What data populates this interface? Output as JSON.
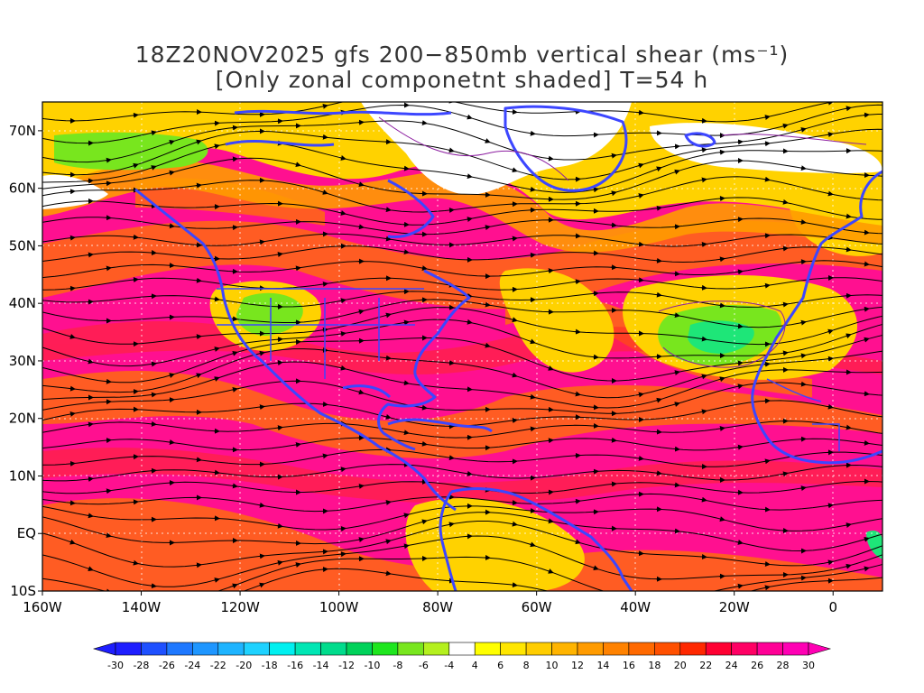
{
  "title": {
    "line1": "18Z20NOV2025 gfs 200−850mb vertical shear (ms⁻¹)",
    "line2": "[Only zonal componetnt shaded] T=54 h"
  },
  "axes": {
    "lat_labels": [
      "70N",
      "60N",
      "50N",
      "40N",
      "30N",
      "20N",
      "10N",
      "EQ",
      "10S"
    ],
    "lat_values": [
      70,
      60,
      50,
      40,
      30,
      20,
      10,
      0,
      -10
    ],
    "lon_labels": [
      "160W",
      "140W",
      "120W",
      "100W",
      "80W",
      "60W",
      "40W",
      "20W",
      "0"
    ],
    "lon_values": [
      -160,
      -140,
      -120,
      -100,
      -80,
      -60,
      -40,
      -20,
      0
    ],
    "lon_range": [
      -160,
      10
    ],
    "lat_range": [
      -10,
      75
    ],
    "grid": "dotted"
  },
  "colorbar": {
    "labels": [
      "-30",
      "-28",
      "-26",
      "-24",
      "-22",
      "-20",
      "-18",
      "-16",
      "-14",
      "-12",
      "-10",
      "-8",
      "-6",
      "-4",
      "4",
      "6",
      "8",
      "10",
      "12",
      "14",
      "16",
      "18",
      "20",
      "22",
      "24",
      "26",
      "28",
      "30"
    ],
    "colors": [
      "#1e1eff",
      "#1e50ff",
      "#1e78ff",
      "#1e96ff",
      "#1eb4ff",
      "#1ed2ff",
      "#00f0f0",
      "#00e6b4",
      "#00dc8c",
      "#00d25a",
      "#1ee61e",
      "#78e61e",
      "#b4f01e",
      "#ffffff",
      "#ffff00",
      "#ffe600",
      "#ffcd00",
      "#ffb400",
      "#ff9b00",
      "#ff8200",
      "#ff6900",
      "#ff5000",
      "#ff2800",
      "#ff0032",
      "#ff0064",
      "#ff0096",
      "#ff00b4"
    ]
  },
  "colors": {
    "coast": "#3c46ff",
    "streamline": "#000000",
    "contour": "#8c1ea0"
  }
}
